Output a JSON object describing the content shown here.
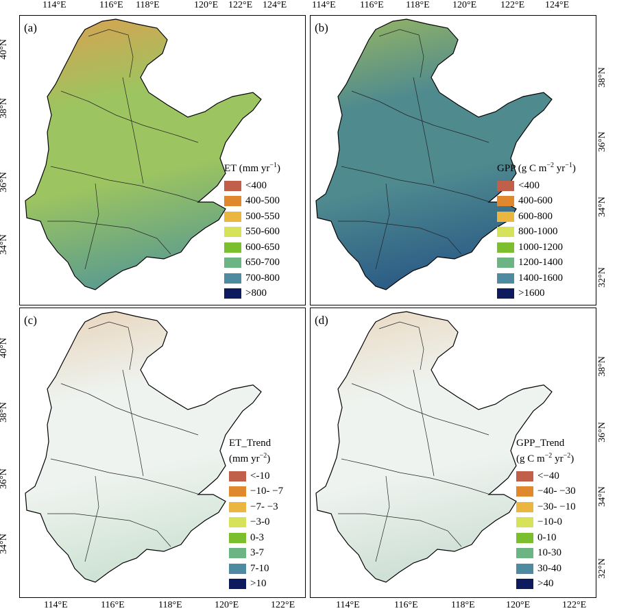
{
  "x_ticks_top": [
    "114°E",
    "116°E",
    "118°E",
    "120°E",
    "122°E",
    "124°E",
    "114°E",
    "116°E",
    "118°E",
    "120°E",
    "122°E",
    "124°E"
  ],
  "x_ticks_bottom": [
    "114°E",
    "116°E",
    "118°E",
    "120°E",
    "122°E",
    "114°E",
    "116°E",
    "118°E",
    "120°E",
    "122°E"
  ],
  "y_ticks_left_top": [
    "40°N",
    "38°N",
    "36°N",
    "34°N"
  ],
  "y_ticks_right_top": [
    "38°N",
    "36°N",
    "34°N",
    "32°N"
  ],
  "y_ticks_left_bottom": [
    "40°N",
    "38°N",
    "36°N",
    "34°N"
  ],
  "y_ticks_right_bottom": [
    "38°N",
    "36°N",
    "34°N",
    "32°N"
  ],
  "panels": {
    "a": {
      "label": "(a)",
      "legend_title": "ET (mm yr",
      "legend_title_sup": "−1",
      "legend_title_end": ")",
      "classes": [
        "<400",
        "400-500",
        "500-550",
        "550-600",
        "600-650",
        "650-700",
        "700-800",
        ">800"
      ],
      "colors": [
        "#c0604a",
        "#e0882e",
        "#eab640",
        "#d6e25a",
        "#7cbf2e",
        "#6cb484",
        "#4e8aa0",
        "#0e1a5e"
      ]
    },
    "b": {
      "label": "(b)",
      "legend_title": "GPP (g C m",
      "legend_title_sup": "−2",
      "legend_title_mid": " yr",
      "legend_title_sup2": "−1",
      "legend_title_end": ")",
      "classes": [
        "<400",
        "400-600",
        "600-800",
        "800-1000",
        "1000-1200",
        "1200-1400",
        "1400-1600",
        ">1600"
      ],
      "colors": [
        "#c0604a",
        "#e0882e",
        "#eab640",
        "#d6e25a",
        "#7cbf2e",
        "#6cb484",
        "#4e8aa0",
        "#0e1a5e"
      ]
    },
    "c": {
      "label": "(c)",
      "legend_title": "ET_Trend",
      "legend_subtitle": "(mm yr",
      "legend_subtitle_sup": "−2",
      "legend_subtitle_end": ")",
      "classes": [
        "<-10",
        "−10- −7",
        "−7- −3",
        "−3-0",
        "0-3",
        "3-7",
        "7-10",
        ">10"
      ],
      "colors": [
        "#c0604a",
        "#e0882e",
        "#eab640",
        "#d6e25a",
        "#7cbf2e",
        "#6cb484",
        "#4e8aa0",
        "#0e1a5e"
      ]
    },
    "d": {
      "label": "(d)",
      "legend_title": "GPP_Trend",
      "legend_subtitle": "(g C m",
      "legend_subtitle_sup": "−2",
      "legend_subtitle_mid": " yr",
      "legend_subtitle_sup2": "−2",
      "legend_subtitle_end": ")",
      "classes": [
        "<−40",
        "−40- −30",
        "−30- −10",
        "−10-0",
        "0-10",
        "10-30",
        "30-40",
        ">40"
      ],
      "colors": [
        "#c0604a",
        "#e0882e",
        "#eab640",
        "#d6e25a",
        "#7cbf2e",
        "#6cb484",
        "#4e8aa0",
        "#0e1a5e"
      ]
    }
  },
  "fills": {
    "a": {
      "base": "#9cc460",
      "north": "#dca050",
      "south": "#5f9e8c"
    },
    "b": {
      "base": "#4f8a8f",
      "north": "#9ab860",
      "south": "#2d5e86"
    },
    "c": {
      "base": "#eef3ef",
      "north": "#e8d2b8",
      "south": "#cfe3d4"
    },
    "d": {
      "base": "#eef3ef",
      "north": "#ead8c0",
      "south": "#cfe0d6"
    }
  }
}
